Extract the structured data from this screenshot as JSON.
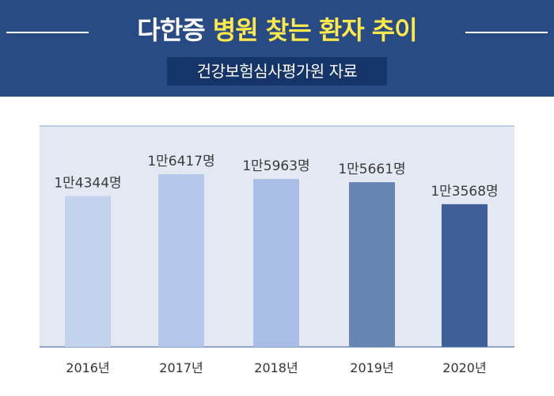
{
  "header": {
    "title_part1": "다한증",
    "title_part2": "병원 찾는 환자 추이",
    "subtitle": "건강보험심사평가원 자료"
  },
  "colors": {
    "header_bg": "#284b86",
    "subtitle_bg": "#15346a",
    "title_accent": "#ffe84a",
    "plot_bg": "#e3e8f3",
    "axis_line": "#8fa5cc",
    "bar_colors": [
      "#c4d3ed",
      "#b4c9ea",
      "#a9bee6",
      "#6785b3",
      "#3f5f99"
    ]
  },
  "chart_data": {
    "type": "bar",
    "title": "다한증 병원 찾는 환자 추이",
    "subtitle": "건강보험심사평가원 자료",
    "categories": [
      "2016년",
      "2017년",
      "2018년",
      "2019년",
      "2020년"
    ],
    "values": [
      14344,
      16417,
      15963,
      15661,
      13568
    ],
    "data_labels": [
      "1만4344명",
      "1만6417명",
      "1만5963명",
      "1만5661명",
      "1만3568명"
    ],
    "xlabel": "",
    "ylabel": "",
    "grid": false,
    "legend": "none"
  }
}
